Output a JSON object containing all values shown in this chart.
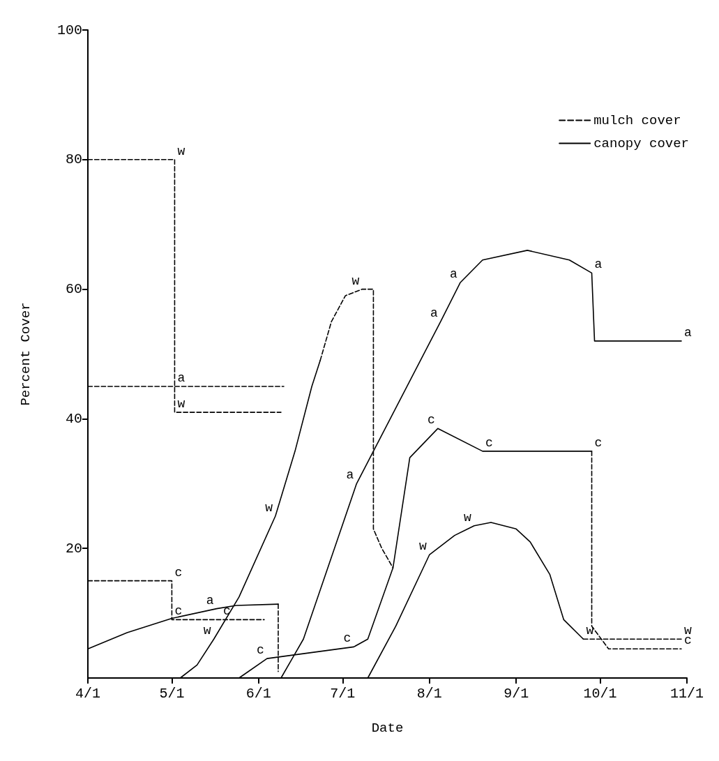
{
  "chart_data": {
    "type": "line",
    "xlabel": "Date",
    "ylabel": "Percent Cover",
    "xlim": [
      "--04-01",
      "--11-01"
    ],
    "xticks": [
      {
        "value": "--04-01",
        "label": "4/1"
      },
      {
        "value": "--05-01",
        "label": "5/1"
      },
      {
        "value": "--06-01",
        "label": "6/1"
      },
      {
        "value": "--07-01",
        "label": "7/1"
      },
      {
        "value": "--08-01",
        "label": "8/1"
      },
      {
        "value": "--09-01",
        "label": "9/1"
      },
      {
        "value": "--10-01",
        "label": "10/1"
      },
      {
        "value": "--11-01",
        "label": "11/1"
      }
    ],
    "ylim": [
      0,
      100
    ],
    "yticks": [
      20,
      40,
      60,
      80,
      100
    ],
    "grid": false,
    "legend": "top right",
    "marker": "none",
    "series": [
      {
        "name": "mulch cover",
        "color": "#000000",
        "line_style": "dashed",
        "x": [
          "--04-01",
          "--05-02",
          "--05-02",
          "--06-09"
        ],
        "values": [
          80,
          80,
          41,
          41
        ]
      },
      {
        "name": "canopy cover",
        "color": "#000000",
        "line_style": "solid",
        "x": [
          "--05-04",
          "--05-10",
          "--05-16",
          "--05-25",
          "--06-07",
          "--06-14",
          "--06-20",
          "--06-23"
        ],
        "values": [
          0,
          2,
          6,
          12.5,
          25,
          35,
          45,
          49
        ]
      },
      {
        "color": "#000000",
        "line_style": "dashed",
        "x": [
          "--06-23",
          "--06-27",
          "--07-02",
          "--07-08",
          "--07-12",
          "--07-12",
          "--07-15",
          "--07-19"
        ],
        "values": [
          49,
          55,
          59,
          60,
          60,
          23,
          20,
          17
        ]
      },
      {
        "color": "#000000",
        "line_style": "dashed",
        "x": [
          "--09-25",
          "--10-30"
        ],
        "values": [
          6,
          6
        ]
      },
      {
        "color": "#000000",
        "line_style": "solid",
        "x": [
          "--07-10",
          "--07-20",
          "--08-01",
          "--08-10",
          "--08-17",
          "--08-23",
          "--09-01",
          "--09-06",
          "--09-13",
          "--09-18",
          "--09-25"
        ],
        "values": [
          0,
          8,
          19,
          22,
          23.5,
          24,
          23,
          21,
          16,
          9,
          6
        ]
      },
      {
        "color": "#000000",
        "line_style": "dashed",
        "x": [
          "--04-01",
          "--06-10"
        ],
        "values": [
          45,
          45
        ]
      },
      {
        "color": "#000000",
        "line_style": "dashed",
        "x": [
          "--06-08",
          "--06-08"
        ],
        "values": [
          11.4,
          1
        ]
      },
      {
        "color": "#000000",
        "line_style": "solid",
        "x": [
          "--04-01",
          "--04-15",
          "--05-01",
          "--05-17",
          "--05-24",
          "--06-08"
        ],
        "values": [
          4.5,
          7,
          9.2,
          10.7,
          11.2,
          11.4
        ]
      },
      {
        "color": "#000000",
        "line_style": "solid",
        "x": [
          "--06-09",
          "--06-13",
          "--06-17",
          "--07-06",
          "--08-05",
          "--08-12",
          "--08-20",
          "--09-05",
          "--09-20",
          "--09-28",
          "--09-29",
          "--10-30"
        ],
        "values": [
          0,
          3,
          6,
          30,
          55,
          61,
          64.5,
          66,
          64.5,
          62.5,
          52,
          52
        ]
      },
      {
        "color": "#000000",
        "line_style": "dashed",
        "x": [
          "--04-01",
          "--05-01",
          "--05-01",
          "--06-03"
        ],
        "values": [
          15,
          15,
          9,
          9
        ]
      },
      {
        "color": "#000000",
        "line_style": "dashed",
        "x": [
          "--09-28",
          "--09-28",
          "--10-04",
          "--10-30"
        ],
        "values": [
          35,
          8,
          4.5,
          4.5
        ]
      },
      {
        "color": "#000000",
        "line_style": "solid",
        "x": [
          "--05-25",
          "--06-04",
          "--07-05",
          "--07-10",
          "--07-19",
          "--07-25",
          "--08-04",
          "--08-20",
          "--09-28"
        ],
        "values": [
          0,
          3,
          4.8,
          6,
          17,
          34,
          38.5,
          35,
          35
        ]
      }
    ],
    "annotations": [
      {
        "text": "w",
        "x": "--05-02",
        "y": 80
      },
      {
        "text": "w",
        "x": "--05-02",
        "y": 41
      },
      {
        "text": "w",
        "x": "--05-16",
        "y": 6
      },
      {
        "text": "w",
        "x": "--06-07",
        "y": 25
      },
      {
        "text": "w",
        "x": "--07-08",
        "y": 60
      },
      {
        "text": "w",
        "x": "--08-01",
        "y": 19
      },
      {
        "text": "w",
        "x": "--08-17",
        "y": 23.5
      },
      {
        "text": "w",
        "x": "--09-25",
        "y": 6
      },
      {
        "text": "w",
        "x": "--10-30",
        "y": 6
      },
      {
        "text": "a",
        "x": "--05-02",
        "y": 45
      },
      {
        "text": "a",
        "x": "--05-17",
        "y": 10.7
      },
      {
        "text": "a",
        "x": "--07-06",
        "y": 30
      },
      {
        "text": "a",
        "x": "--08-05",
        "y": 55
      },
      {
        "text": "a",
        "x": "--08-12",
        "y": 61
      },
      {
        "text": "a",
        "x": "--09-28",
        "y": 62.5
      },
      {
        "text": "a",
        "x": "--10-30",
        "y": 52
      },
      {
        "text": "c",
        "x": "--05-01",
        "y": 15
      },
      {
        "text": "c",
        "x": "--05-01",
        "y": 9
      },
      {
        "text": "c",
        "x": "--05-23",
        "y": 9
      },
      {
        "text": "c",
        "x": "--06-04",
        "y": 3
      },
      {
        "text": "c",
        "x": "--07-05",
        "y": 4.8
      },
      {
        "text": "c",
        "x": "--08-04",
        "y": 38.5
      },
      {
        "text": "c",
        "x": "--08-20",
        "y": 35
      },
      {
        "text": "c",
        "x": "--09-28",
        "y": 35
      },
      {
        "text": "c",
        "x": "--10-30",
        "y": 4.5
      }
    ]
  }
}
